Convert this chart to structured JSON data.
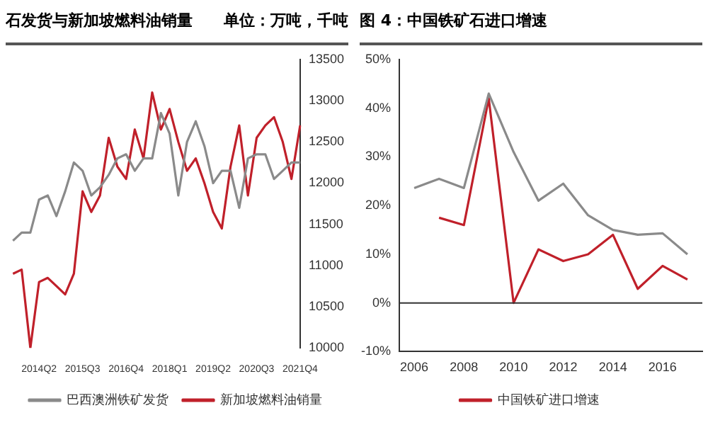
{
  "chart_data": [
    {
      "type": "line",
      "title": "石发货与新加坡燃料油销量",
      "subtitle": "单位：万吨，千吨",
      "categories": [
        null,
        null,
        null,
        null,
        "2014Q2",
        null,
        null,
        null,
        null,
        "2015Q3",
        null,
        null,
        null,
        null,
        "2016Q4",
        null,
        null,
        null,
        null,
        "2018Q1",
        null,
        null,
        null,
        null,
        "2019Q2",
        null,
        null,
        null,
        null,
        "2020Q3",
        null,
        null,
        null,
        null,
        "2021Q4"
      ],
      "series": [
        {
          "name": "巴西澳洲铁矿发货",
          "color": "#8a8a8a",
          "axis": "y2",
          "values": [
            null,
            11300,
            11400,
            11400,
            11800,
            11850,
            11600,
            11900,
            12250,
            12150,
            11850,
            11950,
            12100,
            12300,
            12350,
            12150,
            12300,
            12300,
            12850,
            12600,
            11850,
            12500,
            12750,
            12450,
            12000,
            12150,
            12150,
            11700,
            12300,
            12350,
            12350,
            12050,
            12150,
            12250,
            12250
          ]
        },
        {
          "name": "新加坡燃料油销量",
          "color": "#c0202a",
          "axis": "y2",
          "values": [
            null,
            10900,
            10950,
            10000,
            10800,
            10850,
            10750,
            10650,
            10900,
            11900,
            11650,
            11850,
            12550,
            12200,
            12050,
            12650,
            12300,
            13100,
            12650,
            12900,
            12500,
            12150,
            12300,
            12000,
            11650,
            11450,
            12200,
            12700,
            11850,
            12550,
            12700,
            12800,
            12500,
            12050,
            12700
          ]
        }
      ],
      "y2lim": [
        10000,
        13500
      ],
      "y2ticks": [
        10000,
        10500,
        11000,
        11500,
        12000,
        12500,
        13000,
        13500
      ],
      "legend": "bottom"
    },
    {
      "type": "line",
      "title": "图 4：中国铁矿石进口增速",
      "series": [
        {
          "color": "#8a8a8a",
          "x": [
            2006,
            2007,
            2008,
            2009,
            2010,
            2011,
            2012,
            2013,
            2014,
            2015,
            2016,
            2017
          ],
          "values": [
            23.6,
            25.5,
            23.6,
            43,
            31,
            21,
            24.5,
            18,
            15,
            14,
            14.3,
            10
          ]
        },
        {
          "name": "中国铁矿进口增速",
          "color": "#c0202a",
          "x": [
            2007,
            2008,
            2009,
            2010,
            2011,
            2012,
            2013,
            2014,
            2015,
            2016,
            2017
          ],
          "values": [
            17.5,
            16,
            42,
            0,
            11,
            8.6,
            10,
            14,
            2.9,
            7.6,
            4.8
          ]
        }
      ],
      "xlim": [
        2005.4,
        2017.6
      ],
      "xticks": [
        2006,
        2008,
        2010,
        2012,
        2014,
        2016
      ],
      "ylim": [
        -10,
        50
      ],
      "yticks": [
        {
          "value": -10,
          "label": "-10%"
        },
        {
          "value": 0,
          "label": "0%"
        },
        {
          "value": 10,
          "label": "10%"
        },
        {
          "value": 20,
          "label": "20%"
        },
        {
          "value": 30,
          "label": "30%"
        },
        {
          "value": 40,
          "label": "40%"
        },
        {
          "value": 50,
          "label": "50%"
        }
      ],
      "legend": "bottom"
    }
  ]
}
